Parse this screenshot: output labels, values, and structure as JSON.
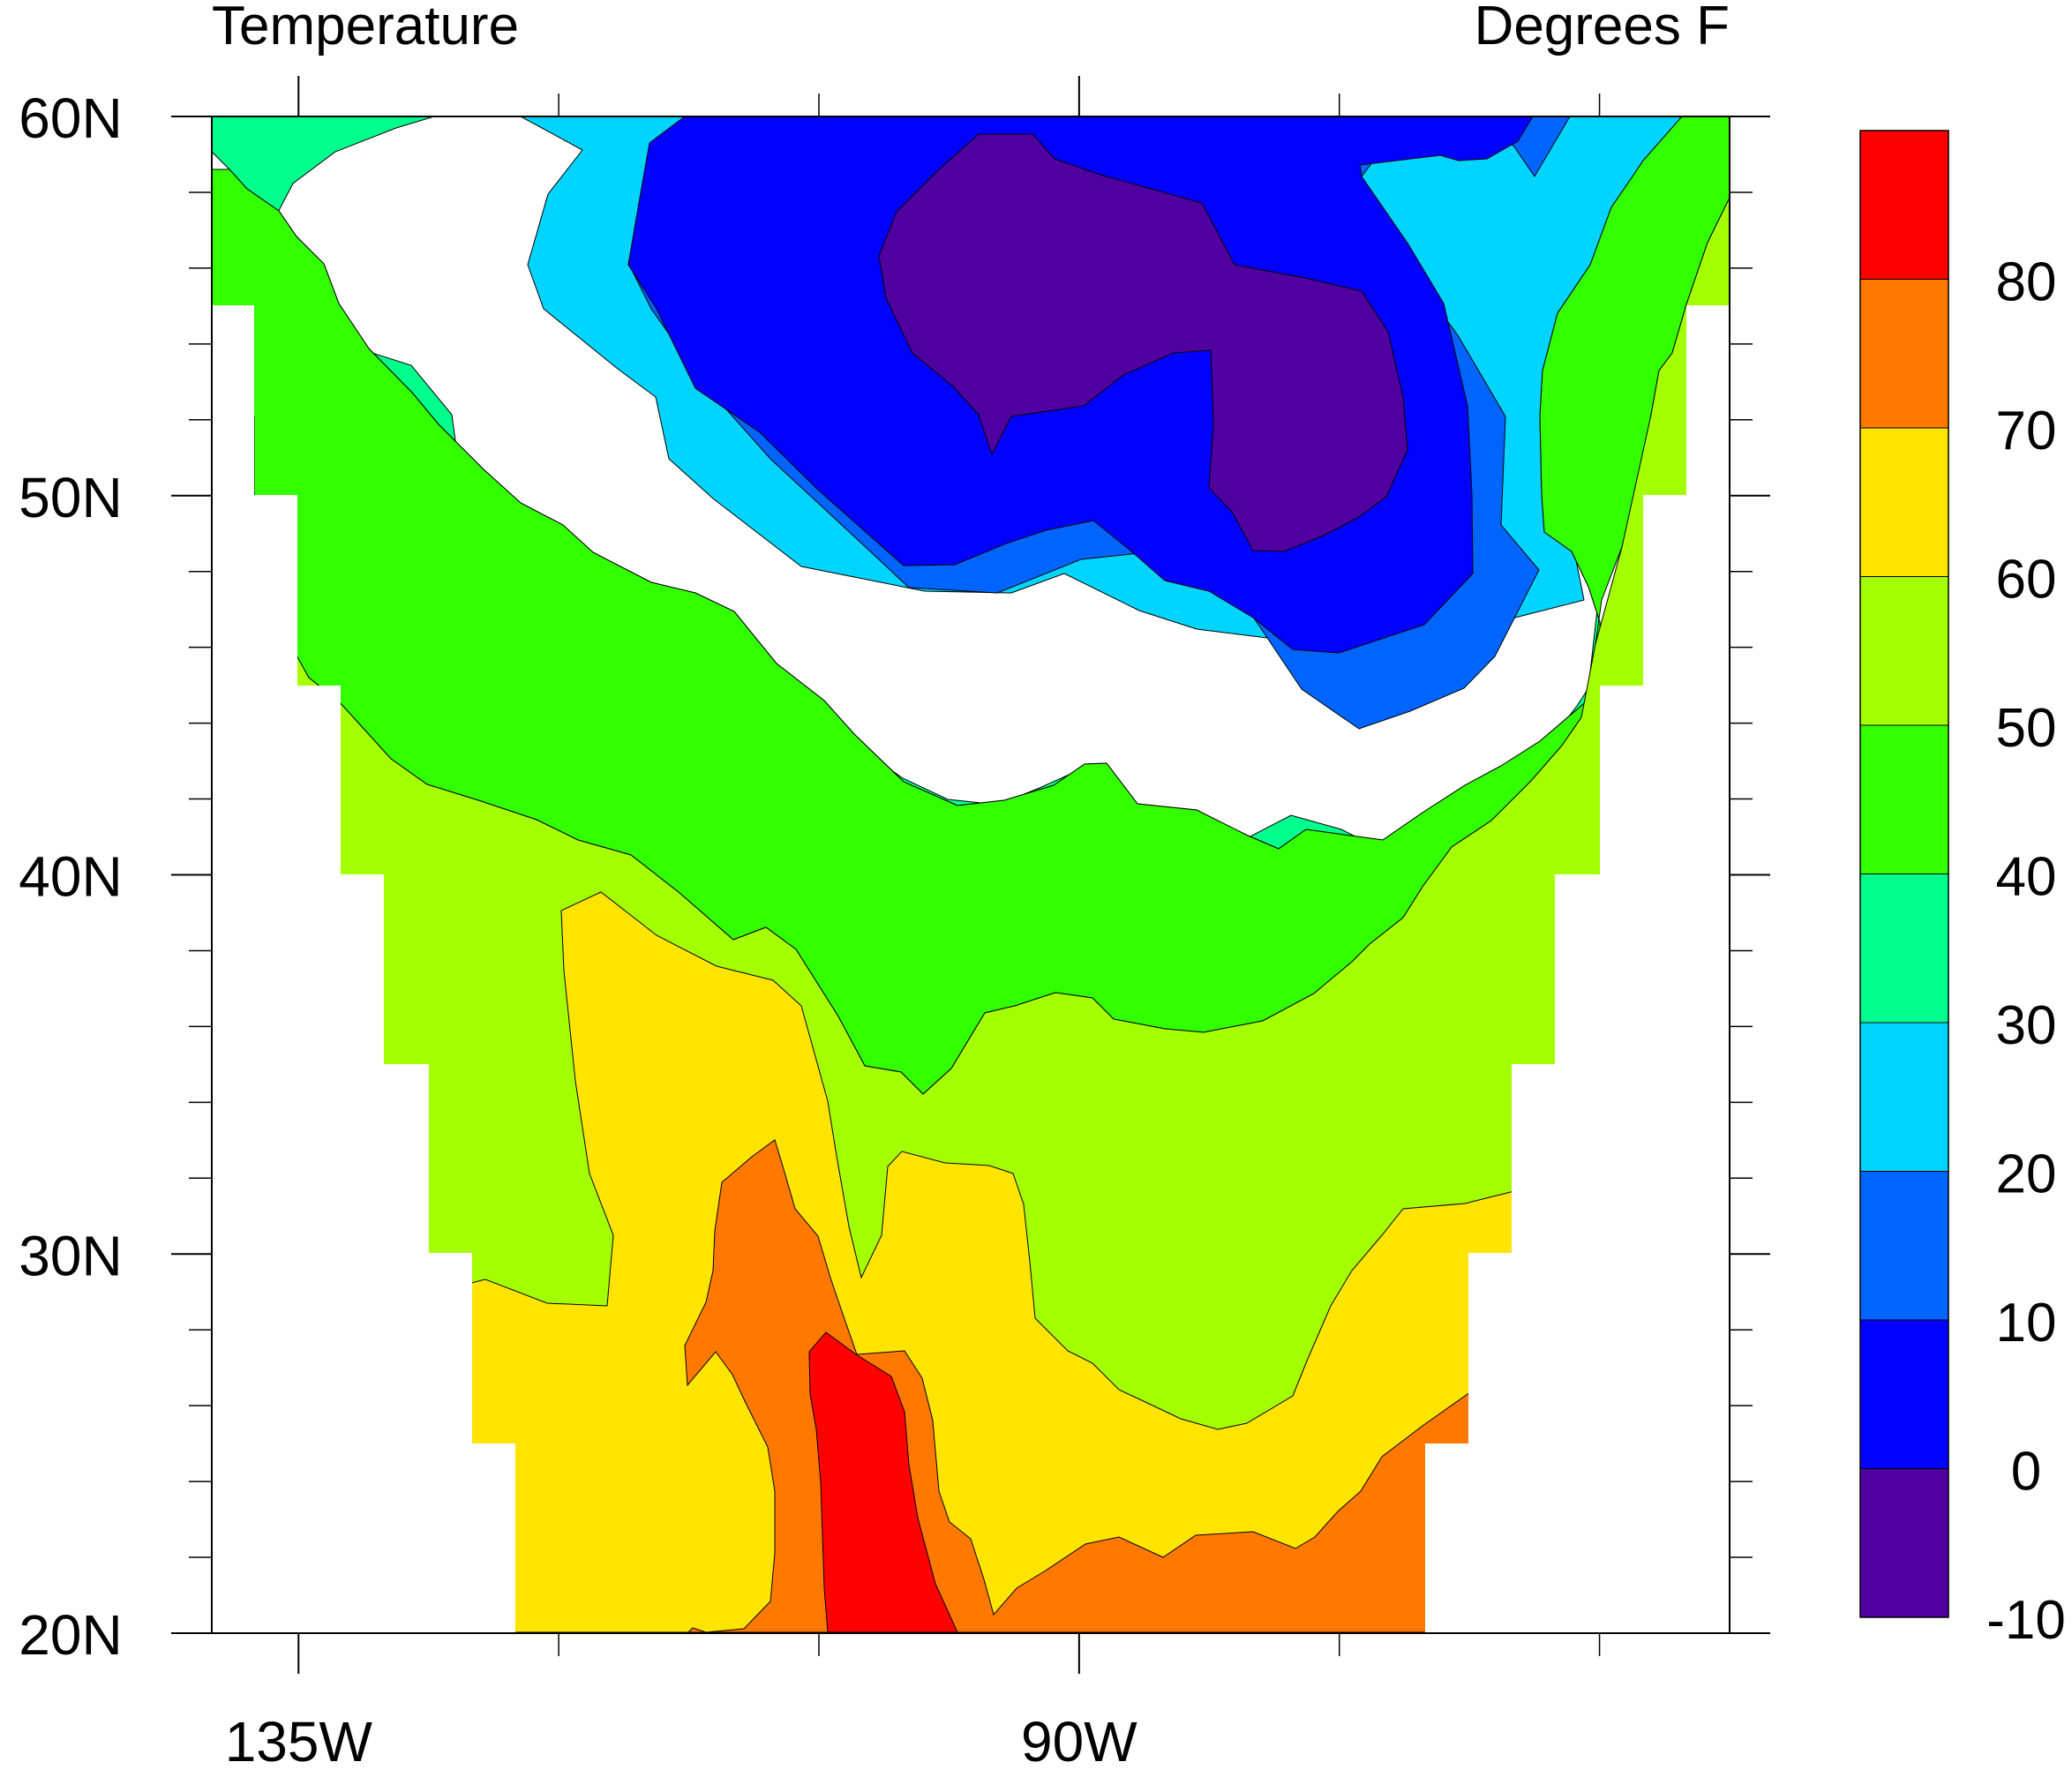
{
  "chart_data": {
    "type": "filled-contour",
    "title_left": "Temperature",
    "title_right": "Degrees F",
    "x_axis": {
      "range": [
        -140,
        -52.5
      ],
      "tick_labels": [
        "135W",
        "90W"
      ],
      "tick_values": [
        -135,
        -90
      ],
      "minor_ticks": [
        -135,
        -120,
        -105,
        -90,
        -75,
        -60
      ]
    },
    "y_axis": {
      "range": [
        20,
        60
      ],
      "tick_labels": [
        "20N",
        "30N",
        "40N",
        "50N",
        "60N"
      ],
      "tick_values": [
        20,
        30,
        40,
        50,
        60
      ],
      "minor_ticks": [
        22,
        24,
        26,
        28,
        32,
        34,
        36,
        38,
        42,
        44,
        46,
        48,
        52,
        54,
        56,
        58
      ]
    },
    "colorbar": {
      "orientation": "vertical",
      "labels": [
        "80",
        "70",
        "60",
        "50",
        "40",
        "30",
        "20",
        "10",
        "0",
        "-10"
      ],
      "colors_top_to_bottom": [
        "#ff0000",
        "#ff7800",
        "#ffe400",
        "#a4ff00",
        "#32ff00",
        "#00ff8c",
        "#00d4ff",
        "#0064ff",
        "#0000ff",
        "#5000a0"
      ]
    },
    "levels": [
      -10,
      0,
      10,
      20,
      30,
      40,
      50,
      60,
      70,
      80
    ],
    "grid": false,
    "data_extent": {
      "rows_lat_lon_min_max": [
        [
          60,
          -140,
          -52.5
        ],
        [
          55,
          -140,
          -52.5
        ],
        [
          50,
          -140,
          -55
        ],
        [
          45,
          -135,
          -57.5
        ],
        [
          40,
          -132.5,
          -60
        ],
        [
          35,
          -130,
          -62.5
        ],
        [
          30,
          -127.5,
          -65
        ],
        [
          25,
          -125,
          -67.5
        ],
        [
          20,
          -122.5,
          -70
        ]
      ]
    },
    "filled_regions": [
      {
        "level": 20,
        "color": "#00d4ff",
        "region": [
          [
            -132.5,
            60
          ],
          [
            -128,
            60
          ],
          [
            -122,
            58
          ],
          [
            -122,
            55
          ],
          [
            -120,
            54
          ],
          [
            -114,
            52
          ],
          [
            -110,
            50
          ],
          [
            -104,
            48
          ],
          [
            -97,
            46
          ],
          [
            -95,
            44
          ],
          [
            -90,
            43
          ],
          [
            -85,
            42
          ],
          [
            -78,
            42.5
          ],
          [
            -73,
            43
          ],
          [
            -69,
            44
          ],
          [
            -64,
            46
          ],
          [
            -63,
            55
          ],
          [
            -58,
            60
          ],
          [
            -52.5,
            60
          ],
          [
            -52.5,
            46
          ],
          [
            -60,
            40
          ],
          [
            -67,
            36
          ],
          [
            -72,
            34
          ],
          [
            -80,
            33
          ],
          [
            -85,
            34
          ],
          [
            -90,
            34
          ],
          [
            -98,
            35
          ],
          [
            -106,
            38
          ],
          [
            -115,
            42
          ],
          [
            -125,
            48
          ],
          [
            -132,
            52
          ],
          [
            -140,
            55
          ],
          [
            -140,
            60
          ]
        ]
      },
      {
        "level": 0,
        "color": "#0064ff",
        "region": [
          [
            -123,
            60
          ],
          [
            -117.5,
            60
          ],
          [
            -116,
            58
          ],
          [
            -113,
            54
          ],
          [
            -110,
            51
          ],
          [
            -104,
            49
          ],
          [
            -96,
            47
          ],
          [
            -90,
            47
          ],
          [
            -87,
            46
          ],
          [
            -81,
            45
          ],
          [
            -74,
            44
          ],
          [
            -68,
            44
          ],
          [
            -65,
            46
          ],
          [
            -66,
            52
          ],
          [
            -68,
            57
          ],
          [
            -70,
            60
          ],
          [
            -78,
            60
          ],
          [
            -96,
            60
          ],
          [
            -118,
            60
          ],
          [
            -122,
            59
          ],
          [
            -121,
            56
          ]
        ]
      },
      {
        "level": -10,
        "color": "#0000ff",
        "region": [
          [
            -118,
            60
          ],
          [
            -73.5,
            60
          ],
          [
            -75,
            58.5
          ],
          [
            -80,
            58
          ],
          [
            -83,
            57
          ],
          [
            -79,
            57.5
          ],
          [
            -76,
            55
          ],
          [
            -72,
            52
          ],
          [
            -70,
            49
          ],
          [
            -74,
            46
          ],
          [
            -80,
            45
          ],
          [
            -84,
            45.5
          ],
          [
            -88,
            47
          ],
          [
            -92,
            47.5
          ],
          [
            -98,
            48
          ],
          [
            -104,
            50
          ],
          [
            -110,
            52
          ],
          [
            -114,
            55
          ],
          [
            -116,
            57.5
          ]
        ]
      },
      {
        "level": -20,
        "color": "#5000a0",
        "region": [
          [
            -103,
            58
          ],
          [
            -99,
            59.5
          ],
          [
            -95,
            59.5
          ],
          [
            -91,
            59
          ],
          [
            -88,
            58
          ],
          [
            -85,
            56
          ],
          [
            -81,
            55.5
          ],
          [
            -78,
            54.5
          ],
          [
            -76.5,
            53
          ],
          [
            -77,
            51
          ],
          [
            -79,
            50
          ],
          [
            -82,
            49.5
          ],
          [
            -83.5,
            50.5
          ],
          [
            -84,
            53
          ],
          [
            -86,
            54.5
          ],
          [
            -89,
            54
          ],
          [
            -93,
            52.5
          ],
          [
            -96,
            51.5
          ],
          [
            -97,
            51
          ],
          [
            -98,
            52.5
          ],
          [
            -102,
            54.5
          ],
          [
            -103.5,
            56
          ]
        ]
      }
    ]
  }
}
